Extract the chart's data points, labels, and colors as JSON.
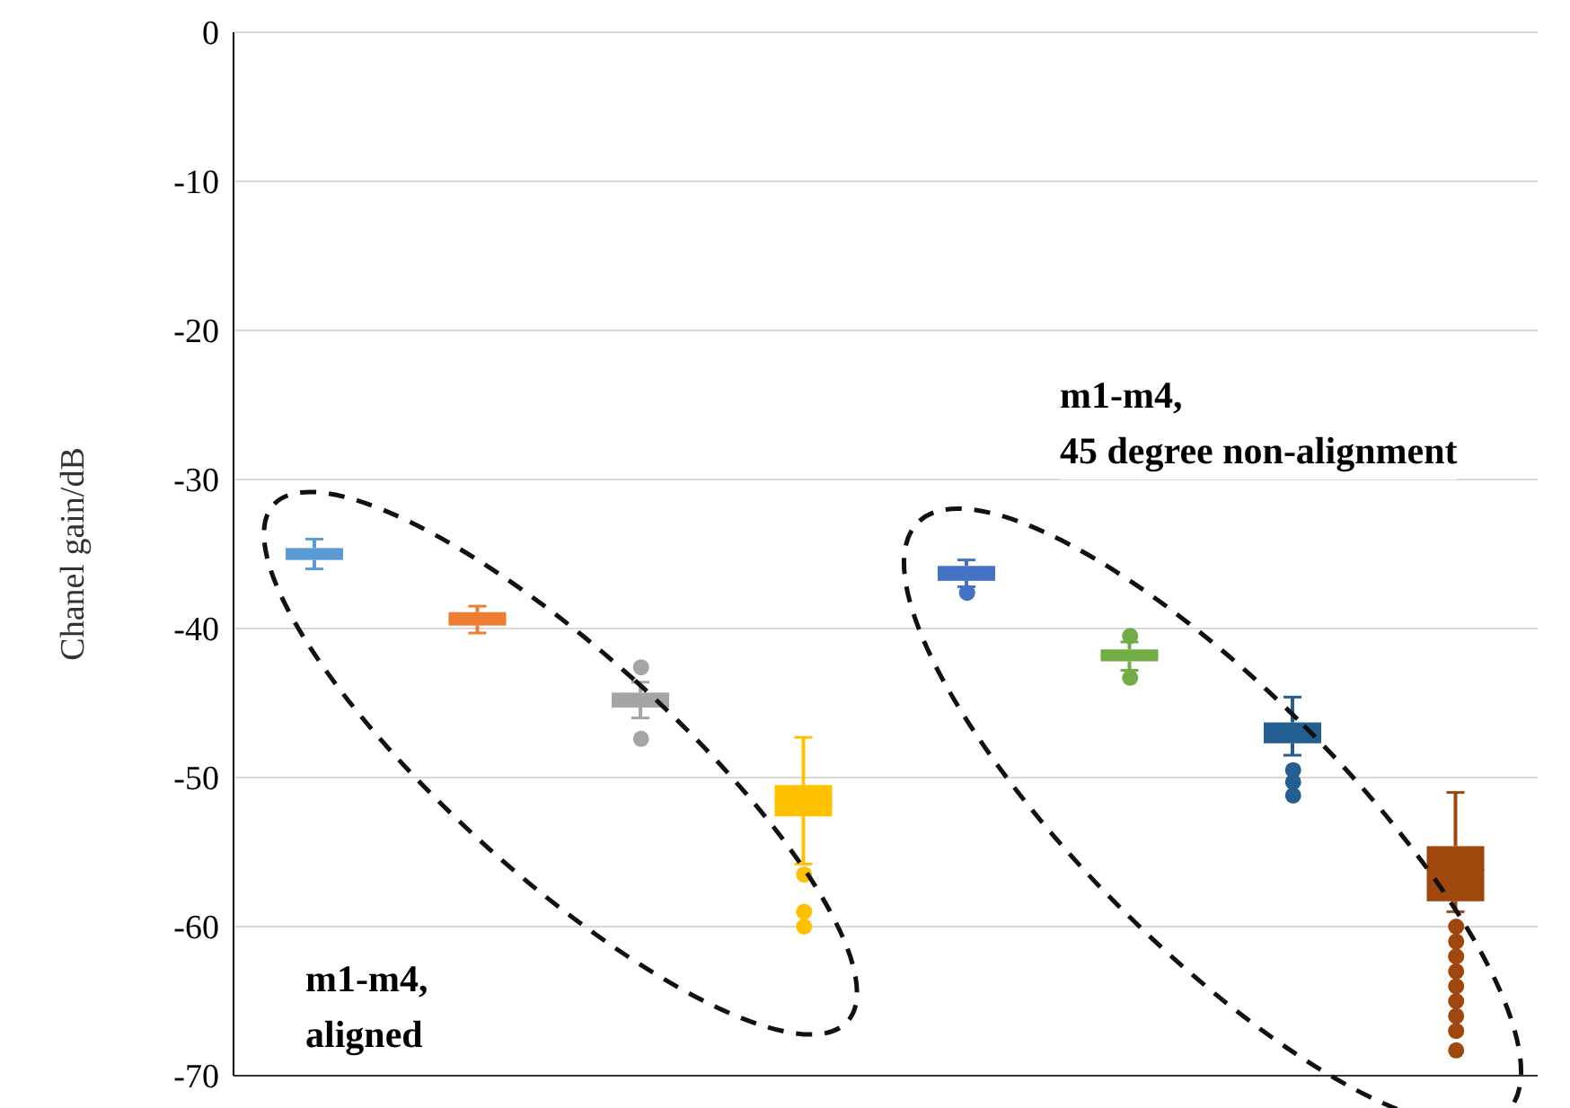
{
  "chart_data": {
    "type": "box",
    "ylabel": "Chanel gain/dB",
    "categories": [
      null,
      null,
      null,
      null,
      null,
      null,
      null,
      null
    ],
    "colors": [
      "#5b9bd5",
      "#ed7d31",
      "#a5a5a5",
      "#ffc000",
      "#4472c4",
      "#70ad47",
      "#255e91",
      "#9e480e"
    ],
    "boxes": [
      {
        "low": -36,
        "q1": -35.4,
        "median": -35,
        "q3": -34.6,
        "high": -34
      },
      {
        "low": -40.3,
        "q1": -39.8,
        "median": -39.4,
        "q3": -38.9,
        "high": -38.5
      },
      {
        "low": -46,
        "q1": -45.3,
        "median": -44.8,
        "q3": -44.3,
        "high": -43.6,
        "outliers": [
          -42.6,
          -47.4
        ]
      },
      {
        "low": -55.8,
        "q1": -52.6,
        "median": -51.5,
        "q3": -50.5,
        "high": -47.3,
        "outliers": [
          -56.5,
          -59,
          -60
        ]
      },
      {
        "low": -37.2,
        "q1": -36.8,
        "median": -36.3,
        "q3": -35.8,
        "high": -35.4,
        "outliers": [
          -37.6
        ]
      },
      {
        "low": -42.8,
        "q1": -42.2,
        "median": -41.8,
        "q3": -41.4,
        "high": -40.9,
        "outliers": [
          -40.5,
          -43.3
        ]
      },
      {
        "low": -48.5,
        "q1": -47.7,
        "median": -47,
        "q3": -46.3,
        "high": -44.6,
        "outliers": [
          -49.5,
          -50.3,
          -51.2
        ]
      },
      {
        "low": -59,
        "q1": -58.3,
        "median": -56.2,
        "q3": -54.6,
        "high": -51,
        "outliers": [
          -60,
          -61,
          -62,
          -63,
          -64,
          -65,
          -66,
          -67,
          -68.3
        ]
      }
    ],
    "ylim": [
      -70,
      0
    ],
    "yticks": [
      -70,
      -60,
      -50,
      -40,
      -30,
      -20,
      -10,
      0
    ],
    "grid": "y",
    "annotations": [
      "m1-m4,\n45 degree non-alignment",
      "m1-m4,\naligned"
    ]
  }
}
